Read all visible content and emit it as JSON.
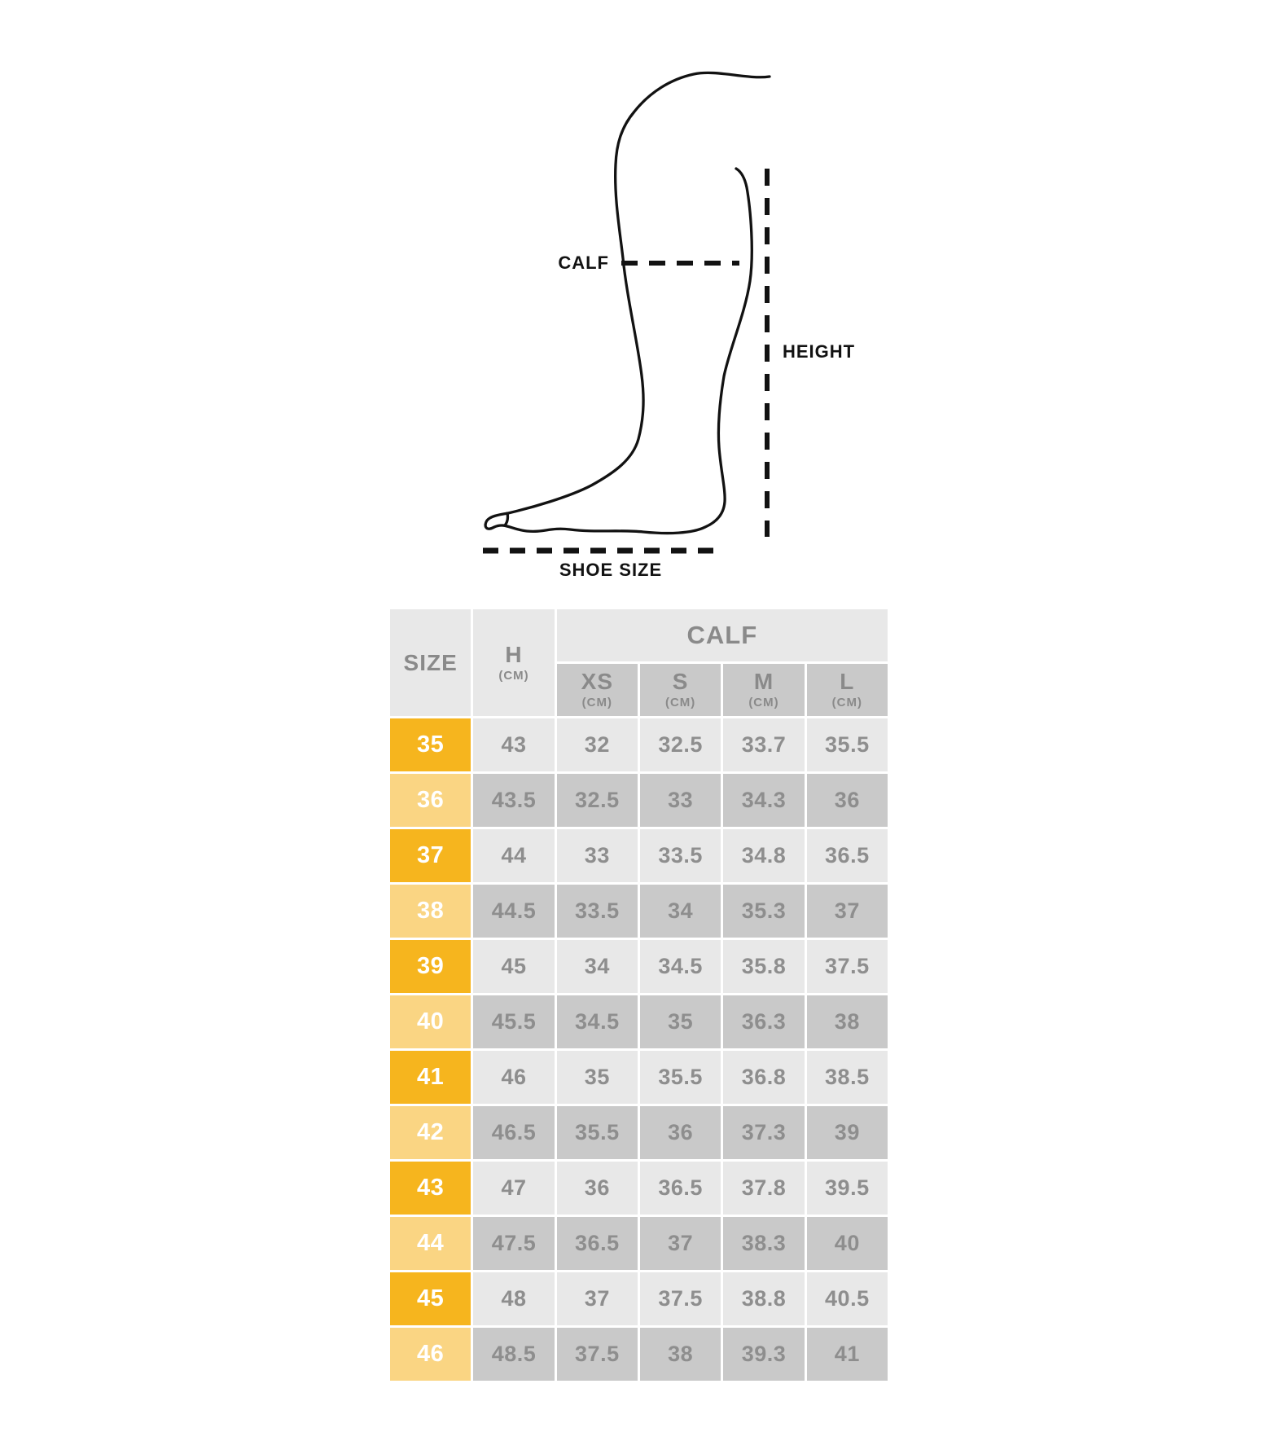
{
  "diagram": {
    "calf_label": "CALF",
    "height_label": "HEIGHT",
    "shoe_size_label": "SHOE SIZE"
  },
  "chart_data": {
    "type": "table",
    "header": {
      "size_label": "SIZE",
      "height_label": "H",
      "height_unit": "(CM)",
      "calf_label": "CALF",
      "calf_sub": [
        {
          "label": "XS",
          "unit": "(CM)"
        },
        {
          "label": "S",
          "unit": "(CM)"
        },
        {
          "label": "M",
          "unit": "(CM)"
        },
        {
          "label": "L",
          "unit": "(CM)"
        }
      ]
    },
    "rows": [
      {
        "size": "35",
        "h": "43",
        "xs": "32",
        "s": "32.5",
        "m": "33.7",
        "l": "35.5"
      },
      {
        "size": "36",
        "h": "43.5",
        "xs": "32.5",
        "s": "33",
        "m": "34.3",
        "l": "36"
      },
      {
        "size": "37",
        "h": "44",
        "xs": "33",
        "s": "33.5",
        "m": "34.8",
        "l": "36.5"
      },
      {
        "size": "38",
        "h": "44.5",
        "xs": "33.5",
        "s": "34",
        "m": "35.3",
        "l": "37"
      },
      {
        "size": "39",
        "h": "45",
        "xs": "34",
        "s": "34.5",
        "m": "35.8",
        "l": "37.5"
      },
      {
        "size": "40",
        "h": "45.5",
        "xs": "34.5",
        "s": "35",
        "m": "36.3",
        "l": "38"
      },
      {
        "size": "41",
        "h": "46",
        "xs": "35",
        "s": "35.5",
        "m": "36.8",
        "l": "38.5"
      },
      {
        "size": "42",
        "h": "46.5",
        "xs": "35.5",
        "s": "36",
        "m": "37.3",
        "l": "39"
      },
      {
        "size": "43",
        "h": "47",
        "xs": "36",
        "s": "36.5",
        "m": "37.8",
        "l": "39.5"
      },
      {
        "size": "44",
        "h": "47.5",
        "xs": "36.5",
        "s": "37",
        "m": "38.3",
        "l": "40"
      },
      {
        "size": "45",
        "h": "48",
        "xs": "37",
        "s": "37.5",
        "m": "38.8",
        "l": "40.5"
      },
      {
        "size": "46",
        "h": "48.5",
        "xs": "37.5",
        "s": "38",
        "m": "39.3",
        "l": "41"
      }
    ]
  },
  "colors": {
    "orange_strong": "#F6B51E",
    "orange_light": "#FAD583",
    "row_light": "#E8E8E8",
    "row_dark": "#C9C9C9",
    "text_gray": "#8E8E8E",
    "header_text": "#8A8A8A",
    "size_text": "#FFFFFF",
    "diagram_ink": "#121212"
  }
}
